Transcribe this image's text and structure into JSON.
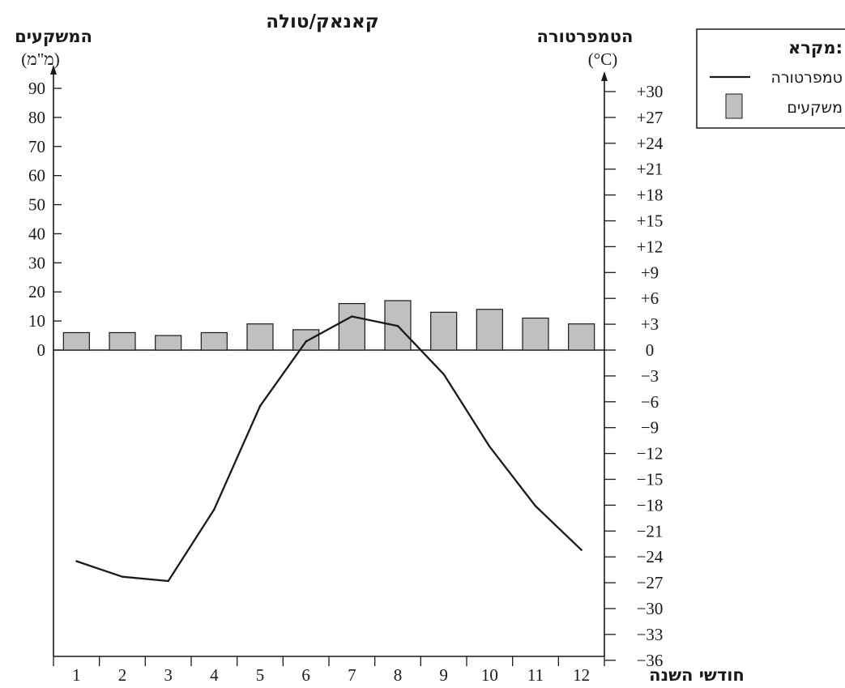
{
  "chart_data": {
    "type": "bar",
    "title": "קאנאק/טולה",
    "xlabel": "חודשי השנה",
    "categories": [
      "1",
      "2",
      "3",
      "4",
      "5",
      "6",
      "7",
      "8",
      "9",
      "10",
      "11",
      "12"
    ],
    "left_axis": {
      "label": "המשקעים",
      "unit": "(מ\"מ)",
      "ylim": [
        0,
        90
      ],
      "ticks": [
        "0",
        "10",
        "20",
        "30",
        "40",
        "50",
        "60",
        "70",
        "80",
        "90"
      ]
    },
    "right_axis": {
      "label": "הטמפרטורה",
      "unit": "(°C)",
      "ylim": [
        -36,
        30
      ],
      "ticks": [
        "−36",
        "−33",
        "−30",
        "−27",
        "−24",
        "−21",
        "−18",
        "−15",
        "−12",
        "−9",
        "−6",
        "−3",
        "0",
        "+3",
        "+6",
        "+9",
        "+12",
        "+15",
        "+18",
        "+21",
        "+24",
        "+27",
        "+30"
      ]
    },
    "series": [
      {
        "name": "משקעים",
        "type": "bar",
        "axis": "left",
        "values": [
          6,
          6,
          5,
          6,
          9,
          7,
          16,
          17,
          13,
          14,
          11,
          9
        ],
        "color": "#c0c0c0"
      },
      {
        "name": "טמפרטורה",
        "type": "line",
        "axis": "right",
        "values": [
          -24.5,
          -26.3,
          -26.8,
          -18.5,
          -6.5,
          1.0,
          3.9,
          2.8,
          -2.8,
          -11.2,
          -18.1,
          -23.2
        ],
        "color": "#1a1a1a"
      }
    ],
    "legend": {
      "title": "מקרא:",
      "position": "top-right",
      "items": [
        {
          "label": "טמפרטורה",
          "swatch": "line"
        },
        {
          "label": "משקעים",
          "swatch": "bar"
        }
      ]
    },
    "grid": false
  }
}
